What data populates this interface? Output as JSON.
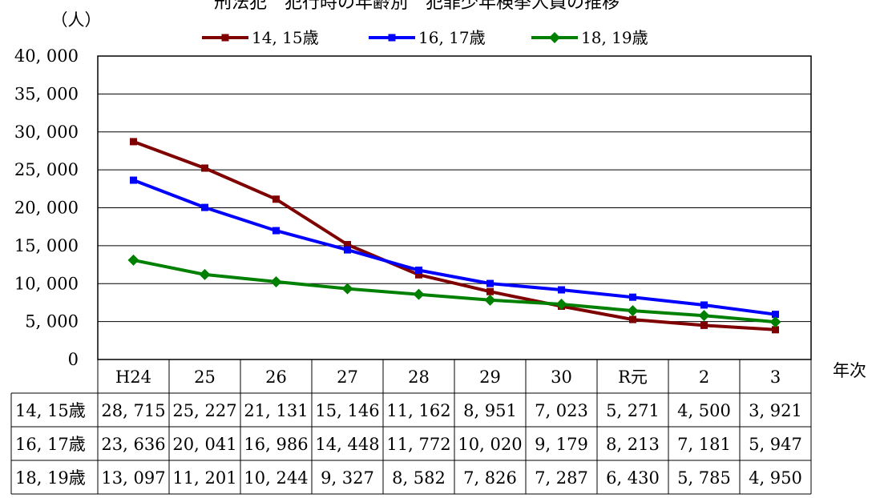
{
  "chart_data": {
    "type": "line",
    "title": "刑法犯　犯行時の年齢別　犯罪少年検挙人員の推移",
    "ylabel": "（人）",
    "xlabel": "年次",
    "ylim": [
      0,
      40000
    ],
    "yticks": [
      "0",
      "5, 000",
      "10, 000",
      "15, 000",
      "20, 000",
      "25, 000",
      "30, 000",
      "35, 000",
      "40, 000"
    ],
    "categories": [
      "H24",
      "25",
      "26",
      "27",
      "28",
      "29",
      "30",
      "R元",
      "2",
      "3"
    ],
    "grid": true,
    "legend": "top",
    "series": [
      {
        "name": "14, 15歳",
        "color": "#7f0000",
        "marker": "square",
        "values": [
          28715,
          25227,
          21131,
          15146,
          11162,
          8951,
          7023,
          5271,
          4500,
          3921
        ],
        "labels": [
          "28, 715",
          "25, 227",
          "21, 131",
          "15, 146",
          "11, 162",
          "8, 951",
          "7, 023",
          "5, 271",
          "4, 500",
          "3, 921"
        ]
      },
      {
        "name": "16, 17歳",
        "color": "#0000ff",
        "marker": "square",
        "values": [
          23636,
          20041,
          16986,
          14448,
          11772,
          10020,
          9179,
          8213,
          7181,
          5947
        ],
        "labels": [
          "23, 636",
          "20, 041",
          "16, 986",
          "14, 448",
          "11, 772",
          "10, 020",
          "9, 179",
          "8, 213",
          "7, 181",
          "5, 947"
        ]
      },
      {
        "name": "18, 19歳",
        "color": "#008000",
        "marker": "diamond",
        "values": [
          13097,
          11201,
          10244,
          9327,
          8582,
          7826,
          7287,
          6430,
          5785,
          4950
        ],
        "labels": [
          "13, 097",
          "11, 201",
          "10, 244",
          "9, 327",
          "8, 582",
          "7, 826",
          "7, 287",
          "6, 430",
          "5, 785",
          "4, 950"
        ]
      }
    ]
  }
}
